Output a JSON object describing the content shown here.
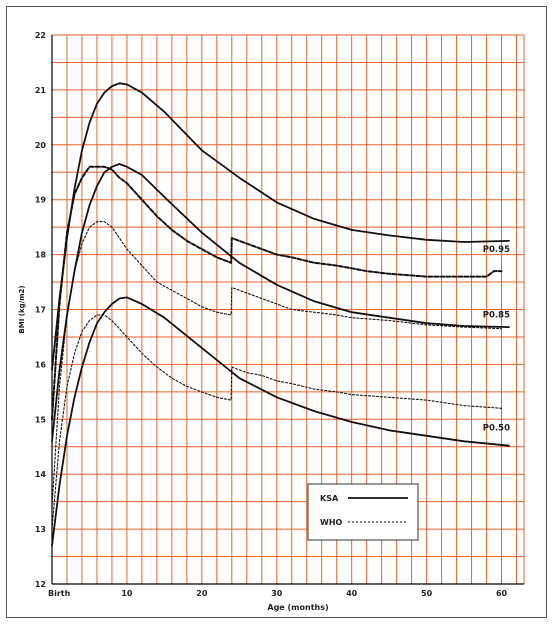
{
  "chart_data": {
    "type": "line",
    "xlabel": "Age (months)",
    "ylabel": "BMI (kg/m2)",
    "xlim": [
      0,
      63
    ],
    "ylim": [
      12,
      22
    ],
    "x_ticks": [
      {
        "value": 0,
        "label": "Birth"
      },
      {
        "value": 10,
        "label": "10"
      },
      {
        "value": 20,
        "label": "20"
      },
      {
        "value": 30,
        "label": "30"
      },
      {
        "value": 40,
        "label": "40"
      },
      {
        "value": 50,
        "label": "50"
      },
      {
        "value": 60,
        "label": "60"
      }
    ],
    "y_ticks": [
      12,
      13,
      14,
      15,
      16,
      17,
      18,
      19,
      20,
      21,
      22
    ],
    "grid": true,
    "grid_color": "#e8622a",
    "legend": {
      "placement": "bottom-right",
      "entries": [
        {
          "label": "KSA",
          "style": "solid"
        },
        {
          "label": "WHO",
          "style": "dotted"
        }
      ]
    },
    "annotations": [
      {
        "label": "P0.95",
        "x": 57.5,
        "y": 18.05
      },
      {
        "label": "P0.85",
        "x": 57.5,
        "y": 16.85
      },
      {
        "label": "P0.50",
        "x": 57.5,
        "y": 14.8
      }
    ],
    "series": [
      {
        "group": "KSA",
        "style": "solid",
        "x": [
          0,
          1,
          2,
          3,
          4,
          5,
          6,
          7,
          8,
          9,
          10,
          12,
          15,
          20,
          25,
          30,
          35,
          40,
          45,
          50,
          55,
          61
        ],
        "y": [
          15.9,
          17.2,
          18.3,
          19.2,
          19.9,
          20.4,
          20.75,
          20.95,
          21.07,
          21.12,
          21.1,
          20.95,
          20.6,
          19.9,
          19.4,
          18.95,
          18.65,
          18.45,
          18.35,
          18.27,
          18.23,
          18.25
        ]
      },
      {
        "group": "KSA",
        "style": "solid",
        "x": [
          0,
          1,
          2,
          3,
          4,
          5,
          6,
          7,
          8,
          9,
          10,
          12,
          15,
          20,
          25,
          30,
          35,
          40,
          45,
          50,
          55,
          61
        ],
        "y": [
          14.6,
          15.9,
          16.9,
          17.7,
          18.4,
          18.9,
          19.25,
          19.5,
          19.6,
          19.65,
          19.6,
          19.45,
          19.05,
          18.4,
          17.85,
          17.45,
          17.15,
          16.95,
          16.85,
          16.75,
          16.7,
          16.68
        ]
      },
      {
        "group": "KSA",
        "style": "solid",
        "x": [
          0,
          1,
          2,
          3,
          4,
          5,
          6,
          7,
          8,
          9,
          10,
          12,
          15,
          20,
          25,
          30,
          35,
          40,
          45,
          50,
          55,
          61
        ],
        "y": [
          12.7,
          13.8,
          14.7,
          15.4,
          15.95,
          16.4,
          16.75,
          16.95,
          17.1,
          17.2,
          17.22,
          17.1,
          16.85,
          16.3,
          15.75,
          15.4,
          15.15,
          14.95,
          14.8,
          14.7,
          14.6,
          14.52
        ]
      },
      {
        "group": "WHO",
        "style": "dashed",
        "x": [
          0,
          1,
          2,
          3,
          4,
          5,
          6,
          7,
          8,
          9,
          10,
          12,
          14,
          16,
          18,
          20,
          22,
          23.9,
          24,
          26,
          28,
          30,
          32,
          35,
          38,
          40,
          42,
          45,
          50,
          55,
          58,
          59,
          60
        ],
        "y": [
          15.0,
          17.1,
          18.4,
          19.1,
          19.4,
          19.6,
          19.6,
          19.6,
          19.55,
          19.4,
          19.3,
          19.0,
          18.7,
          18.45,
          18.25,
          18.1,
          17.95,
          17.85,
          18.3,
          18.2,
          18.1,
          18.0,
          17.95,
          17.85,
          17.8,
          17.75,
          17.7,
          17.65,
          17.6,
          17.6,
          17.6,
          17.7,
          17.7
        ]
      },
      {
        "group": "WHO",
        "style": "dotted",
        "x": [
          0,
          1,
          2,
          3,
          4,
          5,
          6,
          7,
          8,
          9,
          10,
          12,
          14,
          16,
          18,
          20,
          22,
          23.9,
          24,
          26,
          28,
          30,
          32,
          35,
          38,
          40,
          45,
          50,
          55,
          60
        ],
        "y": [
          13.4,
          15.6,
          16.9,
          17.7,
          18.2,
          18.5,
          18.6,
          18.6,
          18.5,
          18.3,
          18.1,
          17.8,
          17.5,
          17.35,
          17.2,
          17.05,
          16.95,
          16.9,
          17.4,
          17.3,
          17.2,
          17.1,
          17.0,
          16.95,
          16.9,
          16.85,
          16.8,
          16.72,
          16.68,
          16.65
        ]
      },
      {
        "group": "WHO",
        "style": "dotted",
        "x": [
          0,
          1,
          2,
          3,
          4,
          5,
          6,
          7,
          8,
          9,
          10,
          12,
          14,
          16,
          18,
          20,
          22,
          23.9,
          24,
          26,
          28,
          30,
          32,
          35,
          38,
          40,
          45,
          50,
          55,
          60
        ],
        "y": [
          13.0,
          14.6,
          15.6,
          16.2,
          16.6,
          16.8,
          16.9,
          16.9,
          16.8,
          16.65,
          16.5,
          16.2,
          15.95,
          15.75,
          15.6,
          15.5,
          15.4,
          15.35,
          15.95,
          15.85,
          15.8,
          15.7,
          15.65,
          15.55,
          15.5,
          15.45,
          15.4,
          15.35,
          15.25,
          15.2
        ]
      }
    ]
  }
}
